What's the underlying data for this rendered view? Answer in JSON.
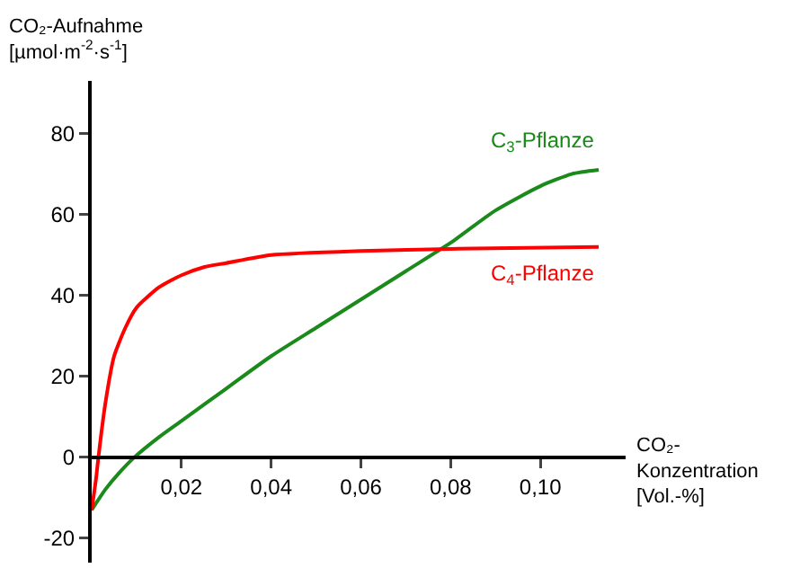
{
  "chart_data": {
    "type": "line",
    "xlabel": "CO₂-Konzentration [Vol.-%]",
    "ylabel": "CO₂-Aufnahme [µmol·m$^{-2}$·s$^{-1}$]",
    "xlim": [
      0,
      0.119
    ],
    "ylim": [
      -26,
      93
    ],
    "xticks": [
      {
        "value": 0.02,
        "label": "0,02"
      },
      {
        "value": 0.04,
        "label": "0,04"
      },
      {
        "value": 0.06,
        "label": "0,06"
      },
      {
        "value": 0.08,
        "label": "0,08"
      },
      {
        "value": 0.1,
        "label": "0,10"
      }
    ],
    "yticks": [
      -20,
      0,
      20,
      40,
      60,
      80
    ],
    "grid": false,
    "legend": false,
    "marker": "none",
    "line_style": "solid",
    "series": [
      {
        "name": "C$_{3}$-Pflanze",
        "color": "#1a8a1a",
        "x": [
          0,
          0.003,
          0.006,
          0.0095,
          0.015,
          0.02,
          0.03,
          0.04,
          0.05,
          0.06,
          0.07,
          0.08,
          0.09,
          0.1,
          0.107,
          0.113
        ],
        "values": [
          -13,
          -8,
          -4,
          0,
          5,
          9,
          17,
          25,
          32,
          39,
          46,
          53,
          61,
          67,
          70,
          71
        ]
      },
      {
        "name": "C$_{4}$-Pflanze",
        "color": "#ff0000",
        "x": [
          0,
          0.001,
          0.0015,
          0.003,
          0.005,
          0.0075,
          0.01,
          0.015,
          0.02,
          0.025,
          0.03,
          0.04,
          0.06,
          0.08,
          0.113
        ],
        "values": [
          -13,
          -5,
          0,
          13,
          25,
          32,
          37,
          42,
          45,
          47,
          48,
          50,
          51,
          51.5,
          52
        ]
      }
    ]
  }
}
